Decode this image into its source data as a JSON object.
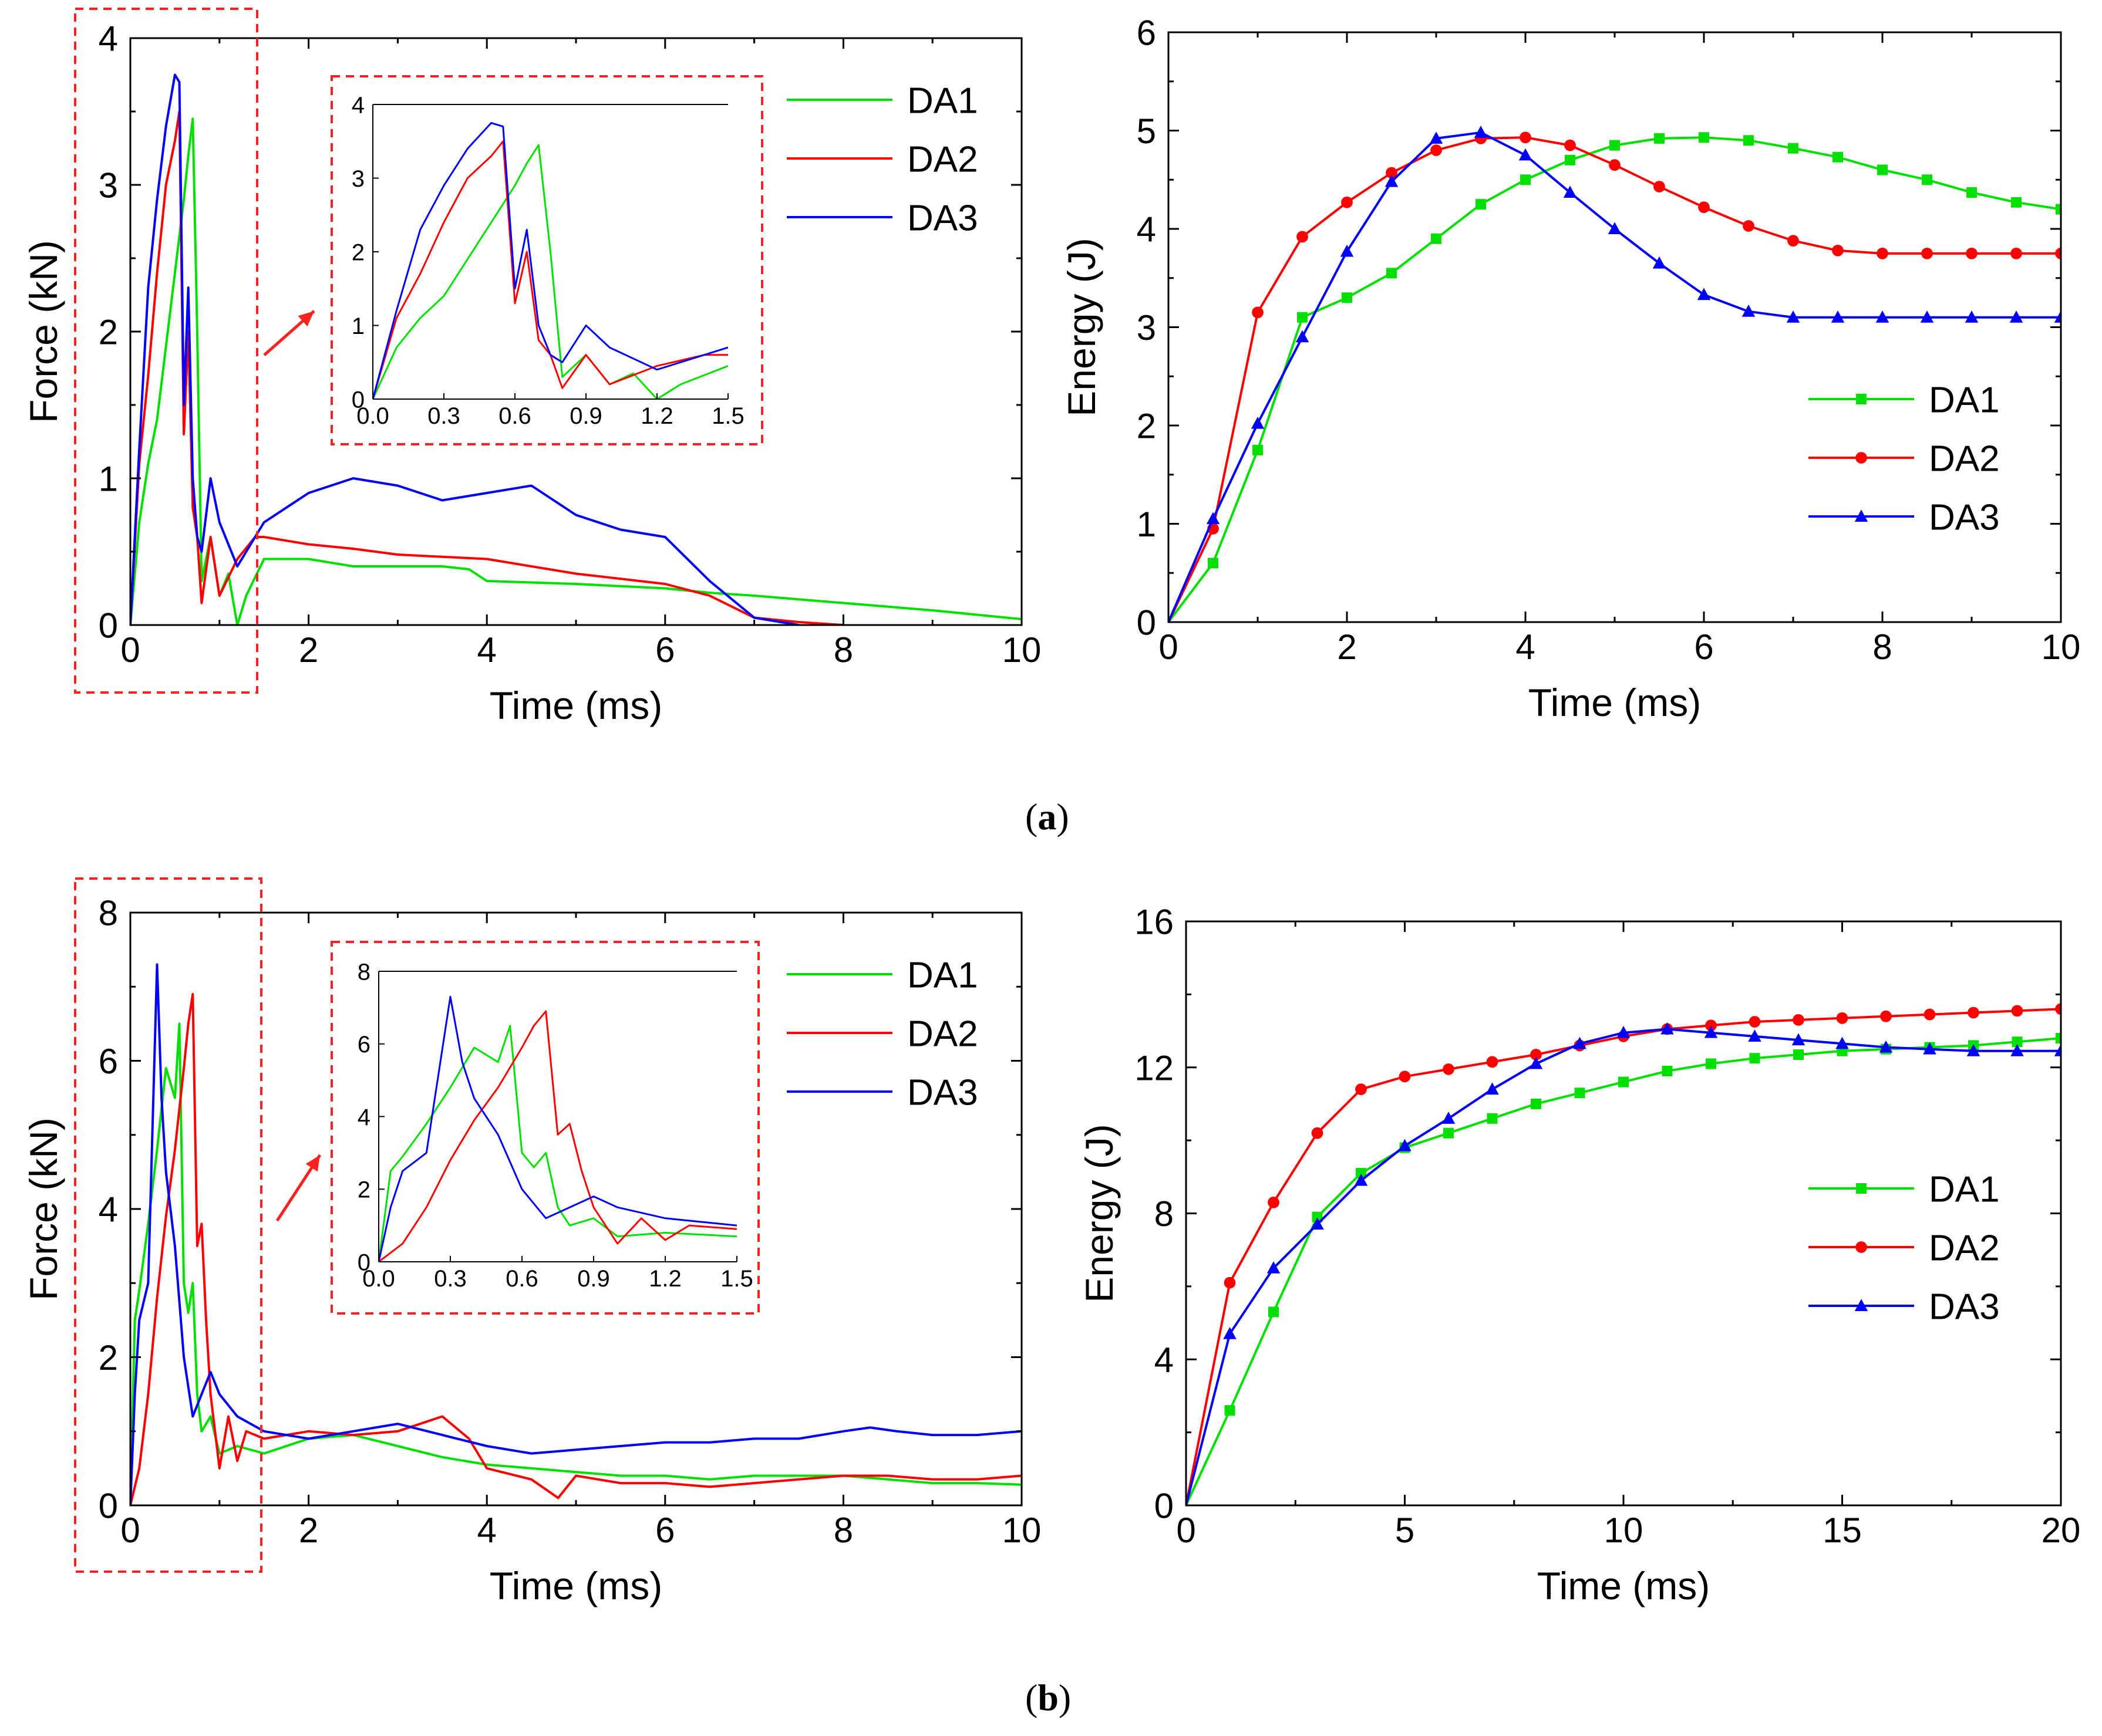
{
  "captions": {
    "a": "a",
    "b": "b"
  },
  "chart_data": [
    {
      "id": "a-force",
      "type": "line",
      "xlabel": "Time (ms)",
      "ylabel": "Force (kN)",
      "xlim": [
        0,
        10
      ],
      "ylim": [
        0,
        4
      ],
      "xticks": [
        0,
        2,
        4,
        6,
        8,
        10
      ],
      "yticks": [
        0,
        1,
        2,
        3,
        4
      ],
      "legend": "top-right",
      "series": [
        {
          "name": "DA1",
          "color": "#00e000",
          "x": [
            0,
            0.1,
            0.2,
            0.3,
            0.4,
            0.5,
            0.6,
            0.65,
            0.7,
            0.75,
            0.8,
            0.9,
            1.0,
            1.1,
            1.2,
            1.3,
            1.5,
            2,
            2.5,
            3,
            3.5,
            3.8,
            4,
            5,
            6,
            6.5,
            7,
            8,
            9,
            10
          ],
          "y": [
            0,
            0.7,
            1.1,
            1.4,
            1.9,
            2.4,
            2.9,
            3.2,
            3.45,
            2.0,
            0.3,
            0.6,
            0.2,
            0.35,
            0.0,
            0.2,
            0.45,
            0.45,
            0.4,
            0.4,
            0.4,
            0.38,
            0.3,
            0.28,
            0.25,
            0.22,
            0.2,
            0.15,
            0.1,
            0.04
          ]
        },
        {
          "name": "DA2",
          "color": "#ff0000",
          "x": [
            0,
            0.1,
            0.2,
            0.3,
            0.4,
            0.5,
            0.55,
            0.6,
            0.65,
            0.7,
            0.75,
            0.8,
            0.9,
            1.0,
            1.2,
            1.4,
            1.5,
            2,
            2.5,
            3,
            4,
            5,
            6,
            6.5,
            7,
            7.5,
            8
          ],
          "y": [
            0,
            1.1,
            1.7,
            2.4,
            3.0,
            3.3,
            3.5,
            1.3,
            2.0,
            0.8,
            0.6,
            0.15,
            0.6,
            0.2,
            0.45,
            0.6,
            0.6,
            0.55,
            0.52,
            0.48,
            0.45,
            0.35,
            0.28,
            0.2,
            0.05,
            0.02,
            0.0
          ]
        },
        {
          "name": "DA3",
          "color": "#0000ff",
          "x": [
            0,
            0.1,
            0.2,
            0.3,
            0.4,
            0.5,
            0.55,
            0.6,
            0.65,
            0.7,
            0.75,
            0.8,
            0.9,
            1.0,
            1.2,
            1.5,
            2,
            2.5,
            3,
            3.5,
            4,
            4.5,
            5,
            5.5,
            6,
            6.5,
            7,
            7.5
          ],
          "y": [
            0,
            1.2,
            2.3,
            2.9,
            3.4,
            3.75,
            3.7,
            1.5,
            2.3,
            1.0,
            0.6,
            0.5,
            1.0,
            0.7,
            0.4,
            0.7,
            0.9,
            1.0,
            0.95,
            0.85,
            0.9,
            0.95,
            0.75,
            0.65,
            0.6,
            0.3,
            0.05,
            0.0
          ]
        }
      ],
      "inset": {
        "xlim": [
          0,
          1.5
        ],
        "ylim": [
          0,
          4
        ],
        "xticks": [
          "0.0",
          "0.3",
          "0.6",
          "0.9",
          "1.2",
          "1.5"
        ],
        "yticks": [
          "0",
          "1",
          "2",
          "3",
          "4"
        ]
      }
    },
    {
      "id": "a-energy",
      "type": "line",
      "xlabel": "Time (ms)",
      "ylabel": "Energy (J)",
      "xlim": [
        0,
        10
      ],
      "ylim": [
        0,
        6
      ],
      "xticks": [
        0,
        2,
        4,
        6,
        8,
        10
      ],
      "yticks": [
        0,
        1,
        2,
        3,
        4,
        5,
        6
      ],
      "legend": "bottom-right",
      "series": [
        {
          "name": "DA1",
          "color": "#00e000",
          "marker": "square",
          "x": [
            0,
            0.5,
            1,
            1.5,
            2,
            2.5,
            3,
            3.5,
            4,
            4.5,
            5,
            5.5,
            6,
            6.5,
            7,
            7.5,
            8,
            8.5,
            9,
            9.5,
            10
          ],
          "y": [
            0,
            0.6,
            1.75,
            3.1,
            3.3,
            3.55,
            3.9,
            4.25,
            4.5,
            4.7,
            4.85,
            4.92,
            4.93,
            4.9,
            4.82,
            4.73,
            4.6,
            4.5,
            4.37,
            4.27,
            4.2
          ]
        },
        {
          "name": "DA2",
          "color": "#ff0000",
          "marker": "circle",
          "x": [
            0,
            0.5,
            1,
            1.5,
            2,
            2.5,
            3,
            3.5,
            4,
            4.5,
            5,
            5.5,
            6,
            6.5,
            7,
            7.5,
            8,
            8.5,
            9,
            9.5,
            10
          ],
          "y": [
            0,
            0.95,
            3.15,
            3.92,
            4.27,
            4.57,
            4.8,
            4.92,
            4.93,
            4.85,
            4.65,
            4.43,
            4.22,
            4.03,
            3.88,
            3.78,
            3.75,
            3.75,
            3.75,
            3.75,
            3.75
          ]
        },
        {
          "name": "DA3",
          "color": "#0000ff",
          "marker": "triangle",
          "x": [
            0,
            0.5,
            1,
            1.5,
            2,
            2.5,
            3,
            3.5,
            4,
            4.5,
            5,
            5.5,
            6,
            6.5,
            7,
            7.5,
            8,
            8.5,
            9,
            9.5,
            10
          ],
          "y": [
            0,
            1.05,
            2.02,
            2.9,
            3.77,
            4.48,
            4.92,
            4.98,
            4.75,
            4.37,
            4.0,
            3.65,
            3.33,
            3.16,
            3.1,
            3.1,
            3.1,
            3.1,
            3.1,
            3.1,
            3.1
          ]
        }
      ]
    },
    {
      "id": "b-force",
      "type": "line",
      "xlabel": "Time (ms)",
      "ylabel": "Force (kN)",
      "xlim": [
        0,
        10
      ],
      "ylim": [
        0,
        8
      ],
      "xticks": [
        0,
        2,
        4,
        6,
        8,
        10
      ],
      "yticks": [
        0,
        2,
        4,
        6,
        8
      ],
      "legend": "top-right",
      "series": [
        {
          "name": "DA1",
          "color": "#00e000",
          "x": [
            0,
            0.05,
            0.1,
            0.2,
            0.3,
            0.4,
            0.5,
            0.55,
            0.6,
            0.65,
            0.7,
            0.75,
            0.8,
            0.9,
            1.0,
            1.2,
            1.5,
            2,
            2.5,
            3,
            3.5,
            4,
            4.5,
            5,
            5.5,
            6,
            6.5,
            7,
            7.5,
            8,
            8.5,
            9,
            9.5,
            10
          ],
          "y": [
            0,
            2.5,
            2.9,
            3.8,
            4.8,
            5.9,
            5.5,
            6.5,
            3.0,
            2.6,
            3.0,
            1.5,
            1.0,
            1.2,
            0.7,
            0.8,
            0.7,
            0.9,
            0.95,
            0.8,
            0.65,
            0.55,
            0.5,
            0.45,
            0.4,
            0.4,
            0.35,
            0.4,
            0.4,
            0.4,
            0.35,
            0.3,
            0.3,
            0.28
          ]
        },
        {
          "name": "DA2",
          "color": "#ff0000",
          "x": [
            0,
            0.1,
            0.2,
            0.3,
            0.4,
            0.5,
            0.6,
            0.65,
            0.7,
            0.75,
            0.8,
            0.85,
            0.9,
            1.0,
            1.1,
            1.2,
            1.3,
            1.5,
            2,
            2.5,
            3,
            3.5,
            3.8,
            4,
            4.5,
            4.8,
            5,
            5.5,
            6,
            6.5,
            7,
            7.5,
            8,
            8.5,
            9,
            9.5,
            10
          ],
          "y": [
            0,
            0.5,
            1.5,
            2.8,
            3.9,
            4.8,
            5.9,
            6.5,
            6.9,
            3.5,
            3.8,
            2.5,
            1.5,
            0.5,
            1.2,
            0.6,
            1.0,
            0.9,
            1.0,
            0.95,
            1.0,
            1.2,
            0.9,
            0.5,
            0.35,
            0.1,
            0.4,
            0.3,
            0.3,
            0.25,
            0.3,
            0.35,
            0.4,
            0.4,
            0.35,
            0.35,
            0.4
          ]
        },
        {
          "name": "DA3",
          "color": "#0000ff",
          "x": [
            0,
            0.05,
            0.1,
            0.2,
            0.3,
            0.35,
            0.4,
            0.5,
            0.6,
            0.7,
            0.8,
            0.9,
            1.0,
            1.2,
            1.5,
            2,
            2.5,
            3,
            3.5,
            4,
            4.5,
            5,
            5.5,
            6,
            6.5,
            7,
            7.5,
            8,
            8.3,
            8.6,
            9,
            9.5,
            10
          ],
          "y": [
            0,
            1.5,
            2.5,
            3.0,
            7.3,
            5.5,
            4.5,
            3.5,
            2.0,
            1.2,
            1.5,
            1.8,
            1.5,
            1.2,
            1.0,
            0.9,
            1.0,
            1.1,
            0.95,
            0.8,
            0.7,
            0.75,
            0.8,
            0.85,
            0.85,
            0.9,
            0.9,
            1.0,
            1.05,
            1.0,
            0.95,
            0.95,
            1.0
          ]
        }
      ],
      "inset": {
        "xlim": [
          0,
          1.5
        ],
        "ylim": [
          0,
          8
        ],
        "xticks": [
          "0.0",
          "0.3",
          "0.6",
          "0.9",
          "1.2",
          "1.5"
        ],
        "yticks": [
          "0",
          "2",
          "4",
          "6",
          "8"
        ]
      }
    },
    {
      "id": "b-energy",
      "type": "line",
      "xlabel": "Time (ms)",
      "ylabel": "Energy (J)",
      "xlim": [
        0,
        20
      ],
      "ylim": [
        0,
        16
      ],
      "xticks": [
        0,
        5,
        10,
        15,
        20
      ],
      "yticks": [
        0,
        4,
        8,
        12,
        16
      ],
      "legend": "bottom-right",
      "series": [
        {
          "name": "DA1",
          "color": "#00e000",
          "marker": "square",
          "x": [
            0,
            1,
            2,
            3,
            4,
            5,
            6,
            7,
            8,
            9,
            10,
            11,
            12,
            13,
            14,
            15,
            16,
            17,
            18,
            19,
            20
          ],
          "y": [
            0,
            2.6,
            5.3,
            7.9,
            9.1,
            9.8,
            10.2,
            10.6,
            11.0,
            11.3,
            11.6,
            11.9,
            12.1,
            12.25,
            12.35,
            12.45,
            12.5,
            12.55,
            12.6,
            12.7,
            12.8
          ]
        },
        {
          "name": "DA2",
          "color": "#ff0000",
          "marker": "circle",
          "x": [
            0,
            1,
            2,
            3,
            4,
            5,
            6,
            7,
            8,
            9,
            10,
            11,
            12,
            13,
            14,
            15,
            16,
            17,
            18,
            19,
            20
          ],
          "y": [
            0,
            6.1,
            8.3,
            10.2,
            11.4,
            11.75,
            11.95,
            12.15,
            12.35,
            12.6,
            12.85,
            13.05,
            13.15,
            13.25,
            13.3,
            13.35,
            13.4,
            13.45,
            13.5,
            13.55,
            13.6
          ]
        },
        {
          "name": "DA3",
          "color": "#0000ff",
          "marker": "triangle",
          "x": [
            0,
            1,
            2,
            3,
            4,
            5,
            6,
            7,
            8,
            9,
            10,
            11,
            12,
            13,
            14,
            15,
            16,
            17,
            18,
            19,
            20
          ],
          "y": [
            0,
            4.7,
            6.5,
            7.7,
            8.9,
            9.85,
            10.6,
            11.4,
            12.1,
            12.65,
            12.95,
            13.05,
            12.95,
            12.85,
            12.75,
            12.65,
            12.55,
            12.5,
            12.45,
            12.45,
            12.45
          ]
        }
      ]
    }
  ]
}
